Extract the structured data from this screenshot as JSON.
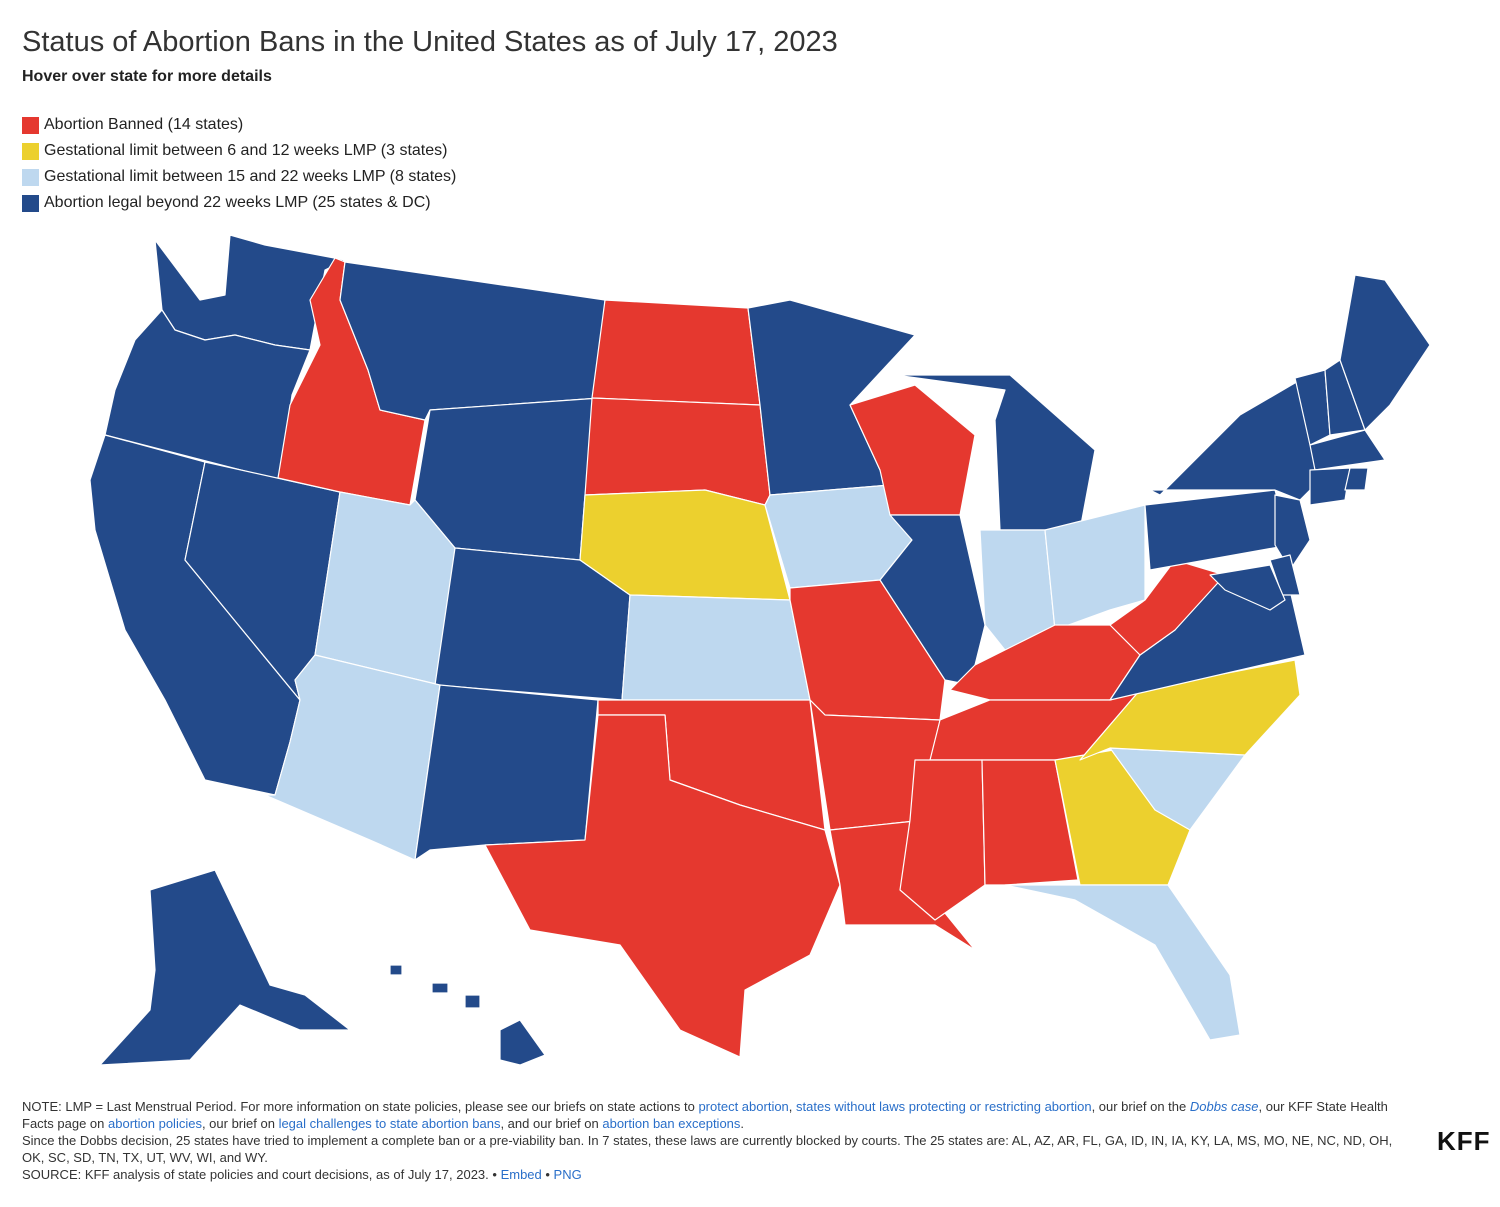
{
  "header": {
    "title": "Status of Abortion Bans in the United States as of July 17, 2023",
    "subtitle": "Hover over state for more details"
  },
  "legend": [
    {
      "label": "Abortion Banned (14 states)",
      "color": "#e5382f"
    },
    {
      "label": "Gestational limit between 6 and 12 weeks LMP (3 states)",
      "color": "#ecd02e"
    },
    {
      "label": "Gestational limit between 15 and 22 weeks LMP (8 states)",
      "color": "#bed8ef"
    },
    {
      "label": "Abortion legal beyond 22 weeks LMP (25 states & DC)",
      "color": "#234a8a"
    }
  ],
  "map_data": {
    "categories": {
      "banned": [
        "ID",
        "ND",
        "SD",
        "WI",
        "MO",
        "OK",
        "TX",
        "AR",
        "LA",
        "MS",
        "AL",
        "TN",
        "KY",
        "WV"
      ],
      "limit_6_12": [
        "NE",
        "NC",
        "GA"
      ],
      "limit_15_22": [
        "UT",
        "AZ",
        "KS",
        "IA",
        "IN",
        "OH",
        "SC",
        "FL"
      ],
      "legal_beyond_22": [
        "WA",
        "OR",
        "CA",
        "NV",
        "MT",
        "WY",
        "CO",
        "NM",
        "MN",
        "IL",
        "MI",
        "PA",
        "NY",
        "VT",
        "NH",
        "ME",
        "MA",
        "RI",
        "CT",
        "NJ",
        "DE",
        "MD",
        "VA",
        "AK",
        "HI",
        "DC"
      ]
    }
  },
  "notes": {
    "p1_a": "NOTE: LMP = Last Menstrual Period. For more information on state policies, please see our briefs on state actions to ",
    "link_protect": "protect abortion",
    "sep1": ", ",
    "link_states_without": "states without laws protecting or restricting abortion",
    "p1_b": ", our brief on the ",
    "link_dobbs": "Dobbs case",
    "p1_c": ", our KFF State Health Facts page on ",
    "link_policies": "abortion policies",
    "p1_d": ", our brief on ",
    "link_challenges": "legal challenges to state abortion bans",
    "p1_e": ", and our brief on ",
    "link_exceptions": "abortion ban exceptions",
    "p1_f": ".",
    "p2": "Since the Dobbs decision, 25 states have tried to implement a complete ban or a pre-viability ban. In 7 states, these laws are currently blocked by courts. The 25 states are: AL, AZ, AR, FL, GA, ID, IN, IA, KY, LA, MS, MO, NE, NC, ND, OH, OK, SC, SD, TN, TX, UT, WV, WI, and WY.",
    "source": "SOURCE: KFF analysis of state policies and court decisions, as of July 17, 2023. • ",
    "link_embed": "Embed",
    "sep2": " • ",
    "link_png": "PNG"
  },
  "logo": "KFF"
}
